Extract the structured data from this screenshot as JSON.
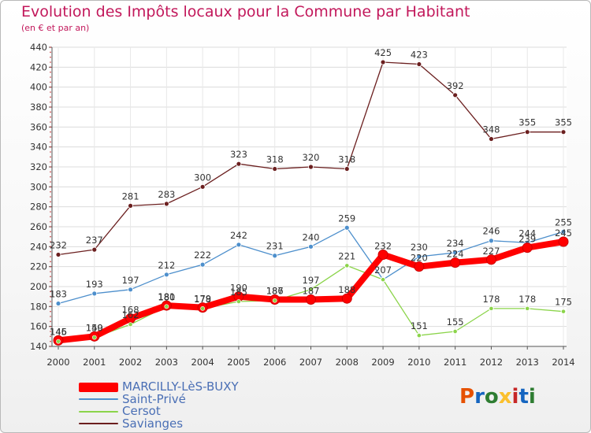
{
  "title": "Evolution des Impôts locaux pour la Commune par Habitant",
  "subtitle": "(en € et par an)",
  "logo": [
    "P",
    "r",
    "o",
    "x",
    "i",
    "t",
    "i"
  ],
  "logo_colors": [
    "#e65100",
    "#1565c0",
    "#2e7d32",
    "#fbc02d",
    "#c62828",
    "#1565c0",
    "#2e7d32"
  ],
  "chart_data": {
    "type": "line",
    "title": "Evolution des Impôts locaux pour la Commune par Habitant",
    "ylabel": "(en € et par an)",
    "xlabel": "",
    "ylim": [
      140,
      440
    ],
    "yticks": [
      140,
      160,
      180,
      200,
      220,
      240,
      260,
      280,
      300,
      320,
      340,
      360,
      380,
      400,
      420,
      440
    ],
    "categories": [
      "2000",
      "2001",
      "2002",
      "2003",
      "2004",
      "2005",
      "2006",
      "2007",
      "2008",
      "2009",
      "2010",
      "2011",
      "2012",
      "2013",
      "2014"
    ],
    "series": [
      {
        "name": "MARCILLY-LèS-BUXY",
        "color": "#ff0000",
        "values": [
          146,
          150,
          168,
          181,
          179,
          190,
          187,
          187,
          188,
          232,
          220,
          224,
          227,
          239,
          245
        ],
        "labels": [
          "146",
          "150",
          "168",
          "181",
          "179",
          "190",
          "187",
          "187",
          "188",
          "232",
          "220",
          "224",
          "227",
          "239",
          "245"
        ]
      },
      {
        "name": "Saint-Privé",
        "color": "#4d8fcc",
        "values": [
          183,
          193,
          197,
          212,
          222,
          242,
          231,
          240,
          259,
          207,
          230,
          234,
          246,
          244,
          255
        ],
        "labels": [
          "183",
          "193",
          "197",
          "212",
          "222",
          "242",
          "231",
          "240",
          "259",
          "207",
          "230",
          "234",
          "246",
          "244",
          "255"
        ]
      },
      {
        "name": "Cersot",
        "color": "#8bd44a",
        "values": [
          145,
          149,
          162,
          180,
          178,
          185,
          186,
          197,
          221,
          207,
          151,
          155,
          178,
          178,
          175
        ],
        "labels": [
          "145",
          "149",
          "162",
          "180",
          "178",
          "185",
          "186",
          "197",
          "221",
          "",
          "151",
          "155",
          "178",
          "178",
          "175"
        ]
      },
      {
        "name": "Savianges",
        "color": "#6b1f1f",
        "values": [
          232,
          237,
          281,
          283,
          300,
          323,
          318,
          320,
          318,
          425,
          423,
          392,
          348,
          355,
          355
        ],
        "labels": [
          "232",
          "237",
          "281",
          "283",
          "300",
          "323",
          "318",
          "320",
          "318",
          "425",
          "423",
          "392",
          "348",
          "355",
          "355"
        ]
      }
    ],
    "grid": true,
    "legend_position": "bottom-left"
  }
}
